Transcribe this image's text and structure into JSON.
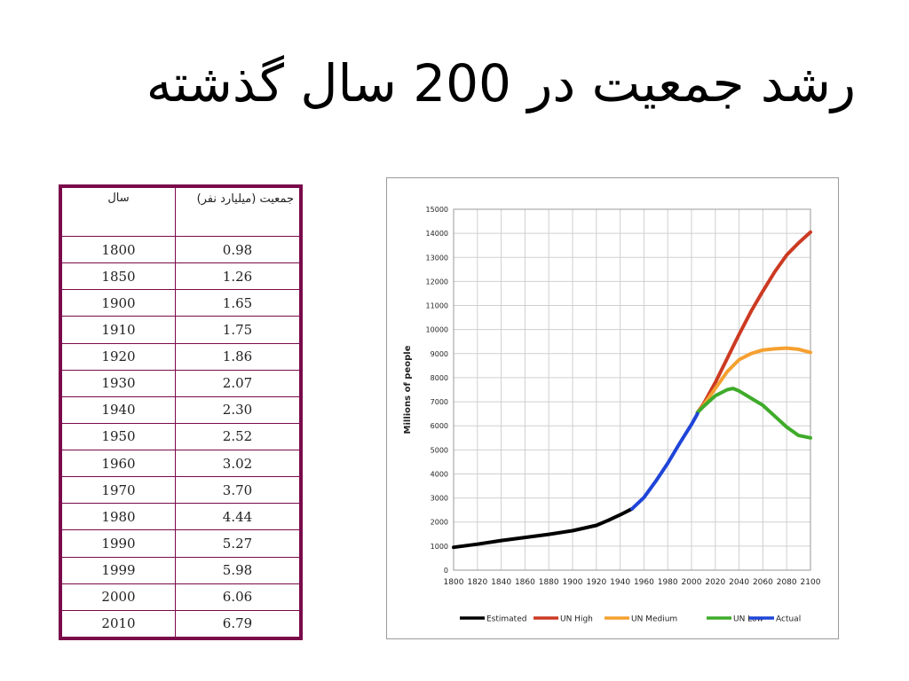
{
  "slide": {
    "title": "رشد جمعیت در 200 سال گذشته"
  },
  "table": {
    "headers": {
      "year": "سال",
      "population": "جمعیت (میلیارد نفر)"
    },
    "rows": [
      {
        "year": "1800",
        "pop": "0.98"
      },
      {
        "year": "1850",
        "pop": "1.26"
      },
      {
        "year": "1900",
        "pop": "1.65"
      },
      {
        "year": "1910",
        "pop": "1.75"
      },
      {
        "year": "1920",
        "pop": "1.86"
      },
      {
        "year": "1930",
        "pop": "2.07"
      },
      {
        "year": "1940",
        "pop": "2.30"
      },
      {
        "year": "1950",
        "pop": "2.52"
      },
      {
        "year": "1960",
        "pop": "3.02"
      },
      {
        "year": "1970",
        "pop": "3.70"
      },
      {
        "year": "1980",
        "pop": "4.44"
      },
      {
        "year": "1990",
        "pop": "5.27"
      },
      {
        "year": "1999",
        "pop": "5.98"
      },
      {
        "year": "2000",
        "pop": "6.06"
      },
      {
        "year": "2010",
        "pop": "6.79"
      }
    ],
    "border_color": "#7a0a4a"
  },
  "chart_data": {
    "type": "line",
    "title": "",
    "xlabel": "",
    "ylabel": "Millions of people",
    "xlim": [
      1800,
      2100
    ],
    "ylim": [
      0,
      15000
    ],
    "x_ticks": [
      1800,
      1820,
      1840,
      1860,
      1880,
      1900,
      1920,
      1940,
      1960,
      1980,
      2000,
      2020,
      2040,
      2060,
      2080,
      2100
    ],
    "y_ticks": [
      0,
      1000,
      2000,
      3000,
      4000,
      5000,
      6000,
      7000,
      8000,
      9000,
      10000,
      11000,
      12000,
      13000,
      14000,
      15000
    ],
    "grid": true,
    "legend_position": "bottom",
    "series": [
      {
        "name": "Estimated",
        "color": "#000000",
        "x": [
          1800,
          1820,
          1840,
          1860,
          1880,
          1900,
          1920,
          1930,
          1940,
          1950
        ],
        "y": [
          950,
          1080,
          1230,
          1360,
          1490,
          1640,
          1860,
          2070,
          2300,
          2550
        ]
      },
      {
        "name": "UN High",
        "color": "#cc3a22",
        "x": [
          2005,
          2010,
          2020,
          2030,
          2040,
          2050,
          2060,
          2070,
          2080,
          2090,
          2100
        ],
        "y": [
          6550,
          6900,
          7800,
          8800,
          9800,
          10750,
          11600,
          12400,
          13100,
          13600,
          14050
        ]
      },
      {
        "name": "UN Medium",
        "color": "#f5a030",
        "x": [
          2005,
          2010,
          2020,
          2030,
          2040,
          2050,
          2060,
          2070,
          2080,
          2090,
          2100
        ],
        "y": [
          6550,
          6850,
          7550,
          8250,
          8750,
          9000,
          9150,
          9200,
          9230,
          9180,
          9050
        ]
      },
      {
        "name": "UN Low",
        "color": "#3fab2a",
        "x": [
          2005,
          2010,
          2020,
          2030,
          2035,
          2040,
          2050,
          2060,
          2070,
          2080,
          2090,
          2100
        ],
        "y": [
          6550,
          6800,
          7250,
          7500,
          7550,
          7450,
          7150,
          6850,
          6400,
          5950,
          5600,
          5500
        ]
      },
      {
        "name": "Actual",
        "color": "#1f45d8",
        "x": [
          1950,
          1960,
          1970,
          1980,
          1990,
          2000,
          2005
        ],
        "y": [
          2550,
          3020,
          3700,
          4440,
          5270,
          6060,
          6500
        ]
      }
    ]
  }
}
